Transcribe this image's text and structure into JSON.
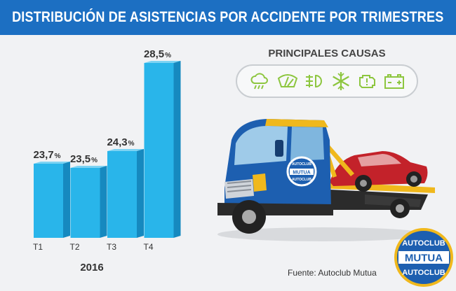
{
  "title": "DISTRIBUCIÓN DE ASISTENCIAS POR ACCIDENTE POR TRIMESTRES",
  "causes_title": "PRINCIPALES CAUSAS",
  "causes_icons": [
    "rain-cloud-icon",
    "windshield-wiper-icon",
    "fog-light-icon",
    "snowflake-icon",
    "engine-warning-icon",
    "battery-icon"
  ],
  "source": "Fuente: Autoclub Mutua",
  "brand": {
    "top_text": "AUTOCLUB",
    "center_text": "MUTUA",
    "bottom_text": "AUTOCLUB"
  },
  "truck_door_text": {
    "top": "AUTOCLUB",
    "center": "MUTUA",
    "bottom": "AUTOCLUB"
  },
  "colors": {
    "header": "#1c6fc2",
    "bar_front": "#29b5ea",
    "bar_side": "#1689bf",
    "bar_top": "#7dd3f3",
    "accent_green": "#8dc63f",
    "truck_blue": "#1d5fb0",
    "car_red": "#c3222a"
  },
  "chart_data": {
    "type": "bar",
    "categories": [
      "T1",
      "T2",
      "T3",
      "T4"
    ],
    "values": [
      23.7,
      23.5,
      24.3,
      28.5
    ],
    "value_labels": [
      "23,7",
      "23,5",
      "24,3",
      "28,5"
    ],
    "unit": "%",
    "xlabel": "2016",
    "ylabel": "",
    "ylim": [
      0,
      30
    ],
    "grid": false,
    "legend": "none"
  }
}
